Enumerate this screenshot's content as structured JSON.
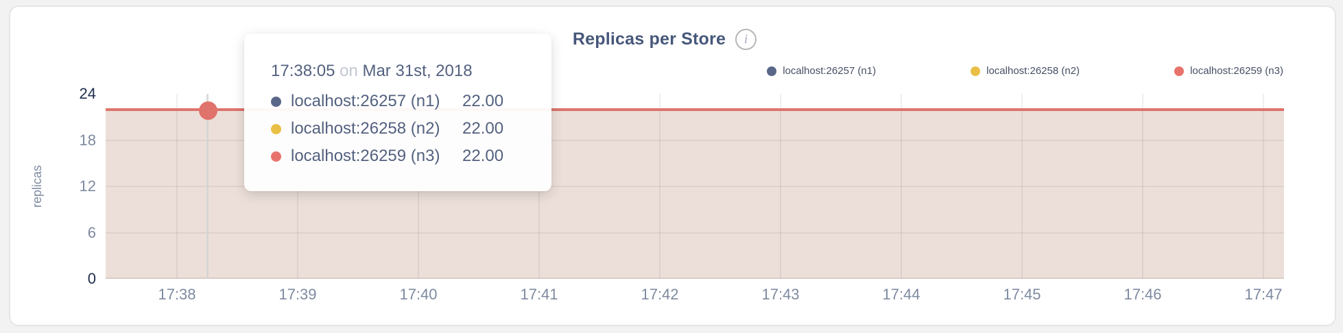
{
  "header": {
    "title": "Replicas per Store",
    "info_icon": "i"
  },
  "legend": {
    "items": [
      {
        "label": "localhost:26257 (n1)",
        "color": "#5a6788"
      },
      {
        "label": "localhost:26258 (n2)",
        "color": "#e9bf45"
      },
      {
        "label": "localhost:26259 (n3)",
        "color": "#e8736c"
      }
    ]
  },
  "tooltip": {
    "time": "17:38:05",
    "conjunction": "on",
    "date": "Mar 31st, 2018",
    "rows": [
      {
        "label": "localhost:26257 (n1)",
        "value": "22.00",
        "color": "#5a6788"
      },
      {
        "label": "localhost:26258 (n2)",
        "value": "22.00",
        "color": "#e9bf45"
      },
      {
        "label": "localhost:26259 (n3)",
        "value": "22.00",
        "color": "#e8736c"
      }
    ]
  },
  "chart_data": {
    "type": "area",
    "title": "Replicas per Store",
    "ylabel": "replicas",
    "ylim": [
      0,
      24
    ],
    "y_ticks": [
      0,
      6,
      12,
      18,
      24
    ],
    "x_ticks": [
      "17:38",
      "17:39",
      "17:40",
      "17:41",
      "17:42",
      "17:43",
      "17:44",
      "17:45",
      "17:46",
      "17:47"
    ],
    "grid": true,
    "legend_position": "top-right",
    "series": [
      {
        "name": "localhost:26257 (n1)",
        "color": "#5a6788",
        "values": [
          22,
          22,
          22,
          22,
          22,
          22,
          22,
          22,
          22,
          22
        ]
      },
      {
        "name": "localhost:26258 (n2)",
        "color": "#e9bf45",
        "values": [
          22,
          22,
          22,
          22,
          22,
          22,
          22,
          22,
          22,
          22
        ]
      },
      {
        "name": "localhost:26259 (n3)",
        "color": "#e8736c",
        "values": [
          22,
          22,
          22,
          22,
          22,
          22,
          22,
          22,
          22,
          22
        ]
      }
    ],
    "hovered_point": {
      "time": "17:38:05",
      "date": "Mar 31st, 2018",
      "values": [
        22.0,
        22.0,
        22.0
      ]
    },
    "line_color": "#dc746b",
    "area_fill": "#ecdfd9",
    "hover_dot_color": "#e0736b"
  }
}
